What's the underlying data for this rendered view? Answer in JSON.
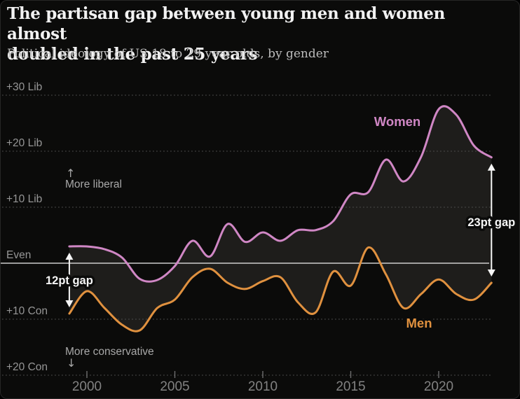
{
  "header": {
    "title_lines": [
      "The partisan gap between young men and women almost",
      "doubled in the past 25 years"
    ],
    "subtitle": "Political ideology of US 18 to 29 year olds, by gender"
  },
  "chart_data": {
    "type": "line",
    "title": "The partisan gap between young men and women almost doubled in the past 25 years",
    "subtitle": "Political ideology of US 18 to 29 year olds, by gender",
    "x_unit": "year",
    "x": [
      1999,
      2000,
      2001,
      2002,
      2003,
      2004,
      2005,
      2006,
      2007,
      2008,
      2009,
      2010,
      2011,
      2012,
      2013,
      2014,
      2015,
      2016,
      2017,
      2018,
      2019,
      2020,
      2021,
      2022,
      2023
    ],
    "series": [
      {
        "name": "Women",
        "color": "#d087c5",
        "values": [
          3,
          3,
          2.5,
          1,
          -2.8,
          -3,
          -0.5,
          4,
          1.2,
          7,
          3.8,
          5.5,
          4,
          5.9,
          5.9,
          7.5,
          12.3,
          12.7,
          18.5,
          14.6,
          19,
          27.5,
          26.5,
          21,
          18.9
        ]
      },
      {
        "name": "Men",
        "color": "#e0913f",
        "values": [
          -9,
          -5,
          -8,
          -11,
          -12,
          -8,
          -6.5,
          -2.5,
          -1,
          -3.5,
          -4.6,
          -3.2,
          -2.5,
          -7,
          -8.8,
          -1.5,
          -4,
          2.8,
          -2,
          -8,
          -5.5,
          -2.9,
          -5.5,
          -6.5,
          -3.5
        ]
      }
    ],
    "y_axis": {
      "labels": [
        "+30 Lib",
        "+20 Lib",
        "+10 Lib",
        "Even",
        "+10 Con",
        "+20 Con"
      ],
      "values": [
        30,
        20,
        10,
        0,
        -10,
        -20
      ],
      "positive_direction": "liberal"
    },
    "x_ticks": [
      2000,
      2005,
      2010,
      2015,
      2020
    ],
    "ylim": [
      -24,
      34
    ],
    "grid": "dotted horizontal, solid line at Even",
    "legend_position": "inline labels on lines"
  },
  "annotations": {
    "direction_up": {
      "arrow": "↑",
      "text": "More liberal"
    },
    "direction_down": {
      "arrow": "↓",
      "text": "More conservative"
    },
    "gap_start": {
      "label": "12pt gap",
      "at_year": 1999,
      "from_value": 3,
      "to_value": -9
    },
    "gap_end": {
      "label": "23pt gap",
      "at_year": 2023,
      "from_value": 18.9,
      "to_value": -3.5
    }
  },
  "colors": {
    "background": "#0b0b0a",
    "women_line": "#d087c5",
    "men_line": "#e0913f",
    "gap_fill": "#1e1d1b",
    "grid_dotted": "#4f4f4f",
    "even_line": "#cdcdcd",
    "axis_text": "#969696",
    "annotation_text": "#f6f6f6"
  }
}
